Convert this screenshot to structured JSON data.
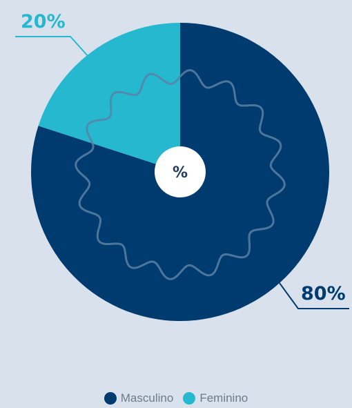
{
  "chart_data": {
    "type": "pie",
    "categories": [
      "Masculino",
      "Feminino"
    ],
    "values": [
      80,
      20
    ],
    "colors": [
      "#003b6f",
      "#25b8cf"
    ],
    "data_labels": [
      "80%",
      "20%"
    ],
    "center_label": "%",
    "legend": {
      "position": "bottom",
      "entries": [
        "Masculino",
        "Feminino"
      ]
    }
  },
  "colors": {
    "background": "#d9e2ec",
    "wave": "#5a81a6",
    "center_circle": "#ffffff"
  }
}
